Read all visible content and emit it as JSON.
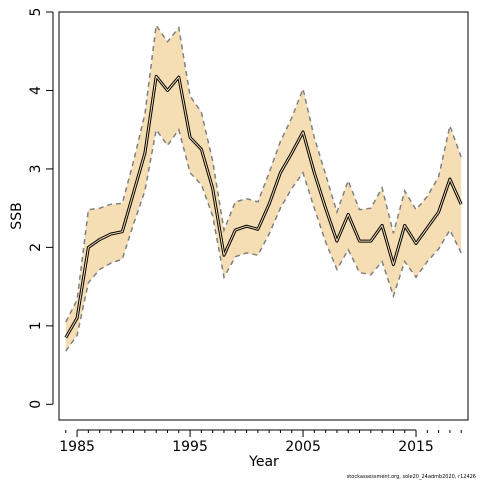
{
  "chart_data": {
    "type": "area",
    "title": "",
    "xlabel": "Year",
    "ylabel": "SSB",
    "xlim": [
      1983.4,
      2019.6
    ],
    "ylim": [
      -0.2,
      5.0
    ],
    "x_ticks": [
      1985,
      1995,
      2005,
      2015
    ],
    "y_ticks": [
      0,
      1,
      2,
      3,
      4,
      5
    ],
    "grid": false,
    "legend": "none",
    "footnote": "stockassessment.org, sole20_24admb2020, r12426",
    "colors": {
      "band_fill": "#f5deb3",
      "bound_line": "#808080",
      "estimate_line": "#000000"
    },
    "x": [
      1984,
      1985,
      1986,
      1987,
      1988,
      1989,
      1990,
      1991,
      1992,
      1993,
      1994,
      1995,
      1996,
      1997,
      1998,
      1999,
      2000,
      2001,
      2002,
      2003,
      2004,
      2005,
      2006,
      2007,
      2008,
      2009,
      2010,
      2011,
      2012,
      2013,
      2014,
      2015,
      2016,
      2017,
      2018,
      2019
    ],
    "series": [
      {
        "name": "",
        "role": "estimate",
        "values": [
          0.85,
          1.1,
          2.0,
          2.1,
          2.17,
          2.2,
          2.7,
          3.2,
          4.18,
          4.0,
          4.17,
          3.4,
          3.25,
          2.75,
          1.9,
          2.22,
          2.27,
          2.23,
          2.55,
          2.95,
          3.2,
          3.47,
          2.95,
          2.5,
          2.08,
          2.42,
          2.08,
          2.08,
          2.28,
          1.78,
          2.28,
          2.05,
          2.25,
          2.45,
          2.87,
          2.55
        ]
      },
      {
        "name": "",
        "role": "upper",
        "values": [
          1.05,
          1.33,
          2.48,
          2.5,
          2.55,
          2.56,
          3.1,
          3.7,
          4.83,
          4.62,
          4.8,
          3.93,
          3.72,
          3.1,
          2.22,
          2.58,
          2.62,
          2.58,
          2.95,
          3.35,
          3.65,
          4.02,
          3.4,
          2.93,
          2.45,
          2.85,
          2.48,
          2.5,
          2.76,
          2.18,
          2.72,
          2.48,
          2.65,
          2.9,
          3.55,
          3.15
        ]
      },
      {
        "name": "",
        "role": "lower",
        "values": [
          0.68,
          0.88,
          1.55,
          1.72,
          1.8,
          1.85,
          2.3,
          2.72,
          3.5,
          3.3,
          3.5,
          2.95,
          2.8,
          2.4,
          1.62,
          1.88,
          1.93,
          1.9,
          2.17,
          2.5,
          2.75,
          2.95,
          2.5,
          2.07,
          1.72,
          1.97,
          1.68,
          1.65,
          1.82,
          1.38,
          1.82,
          1.62,
          1.82,
          1.98,
          2.22,
          1.93
        ]
      }
    ]
  }
}
